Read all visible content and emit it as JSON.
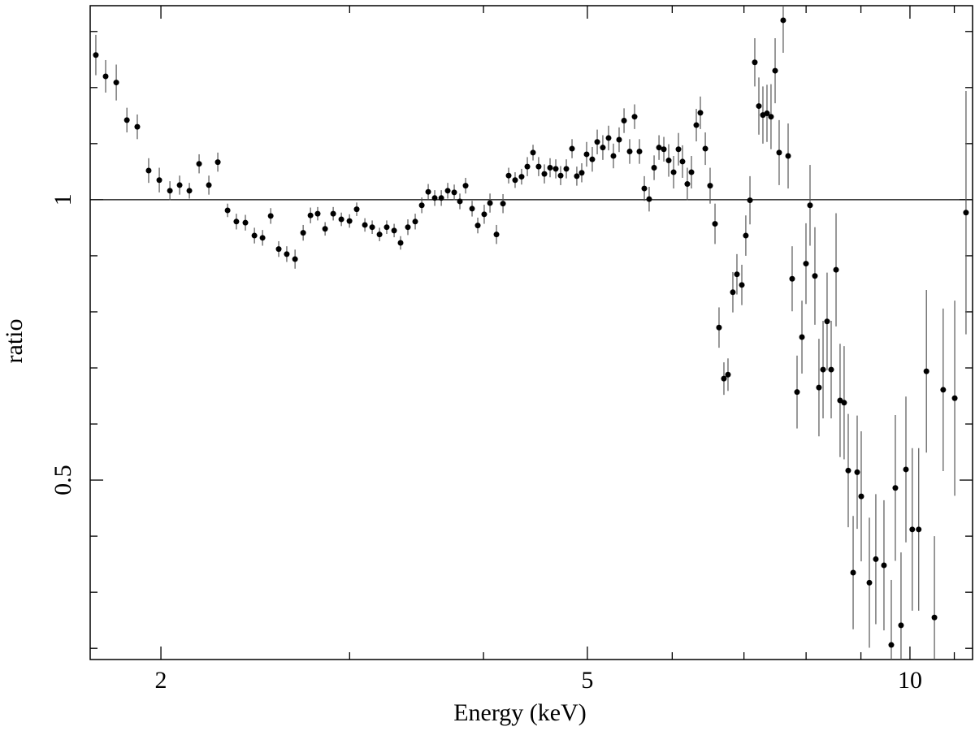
{
  "chart_data": {
    "type": "scatter",
    "xlabel": "Energy (keV)",
    "ylabel": "ratio",
    "color": "#000000",
    "xscale": "log",
    "xlim": [
      1.718,
      11.44
    ],
    "ylim": [
      0.18,
      1.346
    ],
    "xticks": [
      2,
      5,
      10
    ],
    "xminorticks": [
      3,
      4,
      6,
      7,
      8,
      9,
      11
    ],
    "yticks": [
      0.5,
      1
    ],
    "yminorticks": [
      0.2,
      0.3,
      0.4,
      0.6,
      0.7,
      0.8,
      0.9,
      1.1,
      1.2,
      1.3
    ],
    "hline": 1,
    "x": [
      1.739,
      1.776,
      1.817,
      1.859,
      1.901,
      1.948,
      1.993,
      2.039,
      2.082,
      2.126,
      2.171,
      2.217,
      2.26,
      2.308,
      2.352,
      2.398,
      2.445,
      2.488,
      2.532,
      2.576,
      2.621,
      2.668,
      2.715,
      2.758,
      2.801,
      2.846,
      2.896,
      2.947,
      2.999,
      3.046,
      3.1,
      3.149,
      3.199,
      3.249,
      3.301,
      3.347,
      3.4,
      3.454,
      3.503,
      3.552,
      3.602,
      3.653,
      3.704,
      3.756,
      3.802,
      3.849,
      3.903,
      3.951,
      4.006,
      4.056,
      4.113,
      4.171,
      4.222,
      4.281,
      4.341,
      4.395,
      4.449,
      4.503,
      4.559,
      4.615,
      4.672,
      4.721,
      4.779,
      4.838,
      4.888,
      4.94,
      4.992,
      5.053,
      5.107,
      5.169,
      5.233,
      5.288,
      5.353,
      5.41,
      5.476,
      5.534,
      5.592,
      5.651,
      5.71,
      5.771,
      5.832,
      5.893,
      5.955,
      6.018,
      6.081,
      6.134,
      6.198,
      6.253,
      6.319,
      6.374,
      6.442,
      6.509,
      6.578,
      6.635,
      6.705,
      6.764,
      6.835,
      6.895,
      6.968,
      7.028,
      7.091,
      7.165,
      7.228,
      7.291,
      7.355,
      7.419,
      7.485,
      7.55,
      7.616,
      7.697,
      7.764,
      7.846,
      7.929,
      7.998,
      8.068,
      8.153,
      8.224,
      8.297,
      8.369,
      8.443,
      8.532,
      8.606,
      8.681,
      8.758,
      8.851,
      8.928,
      9.006,
      9.165,
      9.293,
      9.457,
      9.607,
      9.691,
      9.81,
      9.914,
      10.05,
      10.19,
      10.36,
      10.54,
      10.74,
      11.01,
      11.28
    ],
    "y": [
      1.258,
      1.22,
      1.209,
      1.142,
      1.13,
      1.052,
      1.035,
      1.016,
      1.026,
      1.016,
      1.064,
      1.026,
      1.067,
      0.981,
      0.961,
      0.959,
      0.936,
      0.932,
      0.971,
      0.912,
      0.903,
      0.894,
      0.941,
      0.972,
      0.975,
      0.948,
      0.975,
      0.965,
      0.962,
      0.983,
      0.955,
      0.951,
      0.938,
      0.951,
      0.945,
      0.923,
      0.951,
      0.961,
      0.99,
      1.014,
      1.003,
      1.003,
      1.016,
      1.013,
      0.997,
      1.025,
      0.984,
      0.954,
      0.974,
      0.994,
      0.938,
      0.993,
      1.043,
      1.035,
      1.041,
      1.059,
      1.084,
      1.059,
      1.046,
      1.057,
      1.055,
      1.043,
      1.055,
      1.091,
      1.042,
      1.048,
      1.081,
      1.072,
      1.103,
      1.093,
      1.11,
      1.078,
      1.107,
      1.141,
      1.086,
      1.148,
      1.086,
      1.02,
      1.001,
      1.057,
      1.093,
      1.09,
      1.07,
      1.049,
      1.09,
      1.068,
      1.028,
      1.049,
      1.133,
      1.155,
      1.091,
      1.025,
      0.957,
      0.772,
      0.681,
      0.688,
      0.835,
      0.867,
      0.848,
      0.936,
      0.999,
      1.245,
      1.167,
      1.151,
      1.154,
      1.148,
      1.23,
      1.084,
      1.32,
      1.078,
      0.859,
      0.657,
      0.755,
      0.886,
      0.99,
      0.864,
      0.665,
      0.697,
      0.783,
      0.697,
      0.875,
      0.642,
      0.638,
      0.517,
      0.335,
      0.514,
      0.471,
      0.317,
      0.359,
      0.348,
      0.206,
      0.486,
      0.241,
      0.519,
      0.412,
      0.412,
      0.694,
      0.255,
      0.661,
      0.646,
      0.977
    ],
    "yerr": [
      0.036,
      0.029,
      0.032,
      0.022,
      0.022,
      0.022,
      0.022,
      0.017,
      0.017,
      0.014,
      0.017,
      0.017,
      0.017,
      0.012,
      0.014,
      0.014,
      0.014,
      0.014,
      0.014,
      0.014,
      0.014,
      0.017,
      0.014,
      0.014,
      0.012,
      0.012,
      0.012,
      0.012,
      0.012,
      0.012,
      0.012,
      0.012,
      0.012,
      0.012,
      0.012,
      0.012,
      0.014,
      0.014,
      0.014,
      0.014,
      0.014,
      0.014,
      0.014,
      0.014,
      0.014,
      0.014,
      0.014,
      0.014,
      0.017,
      0.017,
      0.017,
      0.017,
      0.014,
      0.014,
      0.014,
      0.017,
      0.014,
      0.017,
      0.017,
      0.017,
      0.017,
      0.017,
      0.017,
      0.017,
      0.017,
      0.017,
      0.022,
      0.022,
      0.022,
      0.022,
      0.022,
      0.022,
      0.022,
      0.022,
      0.022,
      0.022,
      0.022,
      0.022,
      0.022,
      0.022,
      0.022,
      0.022,
      0.029,
      0.029,
      0.029,
      0.029,
      0.029,
      0.029,
      0.029,
      0.029,
      0.029,
      0.032,
      0.036,
      0.036,
      0.029,
      0.029,
      0.036,
      0.036,
      0.036,
      0.036,
      0.043,
      0.043,
      0.051,
      0.051,
      0.051,
      0.058,
      0.058,
      0.058,
      0.058,
      0.058,
      0.058,
      0.065,
      0.065,
      0.072,
      0.072,
      0.087,
      0.087,
      0.087,
      0.087,
      0.087,
      0.101,
      0.101,
      0.101,
      0.101,
      0.101,
      0.101,
      0.116,
      0.116,
      0.116,
      0.116,
      0.116,
      0.13,
      0.13,
      0.13,
      0.145,
      0.145,
      0.145,
      0.145,
      0.145,
      0.174,
      0.217
    ]
  }
}
